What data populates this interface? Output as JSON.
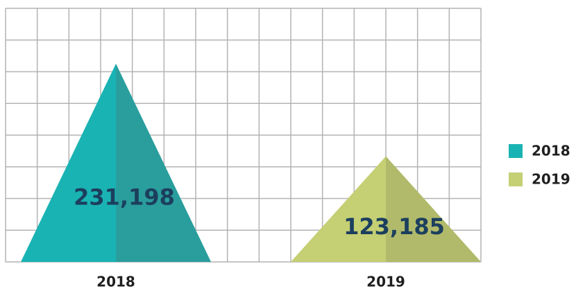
{
  "chart_data": {
    "type": "pyramid",
    "categories": [
      "2018",
      "2019"
    ],
    "values": [
      231198,
      123185
    ],
    "value_labels": [
      "231,198",
      "123,185"
    ],
    "colors": [
      "#1ab3b3",
      "#c5cf73"
    ],
    "shade_colors": [
      "#2a9d9d",
      "#b1ba6a"
    ],
    "legend": "right"
  }
}
